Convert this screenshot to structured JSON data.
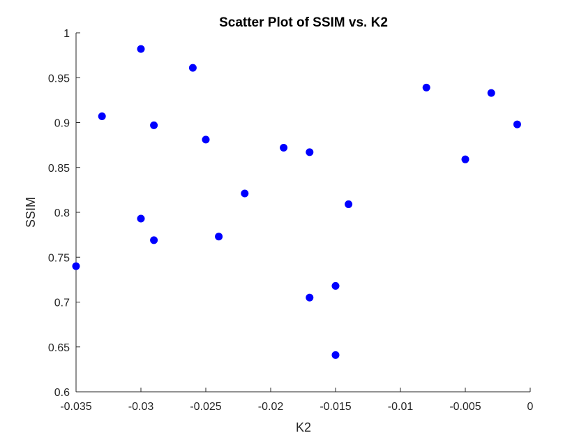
{
  "chart_data": {
    "type": "scatter",
    "title": "Scatter Plot of SSIM vs. K2",
    "xlabel": "K2",
    "ylabel": "SSIM",
    "xlim": [
      -0.035,
      0
    ],
    "ylim": [
      0.6,
      1
    ],
    "xticks": [
      -0.035,
      -0.03,
      -0.025,
      -0.02,
      -0.015,
      -0.01,
      -0.005,
      0
    ],
    "xtick_labels": [
      "-0.035",
      "-0.03",
      "-0.025",
      "-0.02",
      "-0.015",
      "-0.01",
      "-0.005",
      "0"
    ],
    "yticks": [
      0.6,
      0.65,
      0.7,
      0.75,
      0.8,
      0.85,
      0.9,
      0.95,
      1
    ],
    "ytick_labels": [
      "0.6",
      "0.65",
      "0.7",
      "0.75",
      "0.8",
      "0.85",
      "0.9",
      "0.95",
      "1"
    ],
    "grid": false,
    "marker_color": "#0000ff",
    "points": [
      {
        "x": -0.035,
        "y": 0.74
      },
      {
        "x": -0.033,
        "y": 0.907
      },
      {
        "x": -0.03,
        "y": 0.982
      },
      {
        "x": -0.03,
        "y": 0.793
      },
      {
        "x": -0.029,
        "y": 0.897
      },
      {
        "x": -0.029,
        "y": 0.769
      },
      {
        "x": -0.026,
        "y": 0.961
      },
      {
        "x": -0.025,
        "y": 0.881
      },
      {
        "x": -0.024,
        "y": 0.773
      },
      {
        "x": -0.022,
        "y": 0.821
      },
      {
        "x": -0.019,
        "y": 0.872
      },
      {
        "x": -0.017,
        "y": 0.867
      },
      {
        "x": -0.017,
        "y": 0.705
      },
      {
        "x": -0.015,
        "y": 0.718
      },
      {
        "x": -0.015,
        "y": 0.641
      },
      {
        "x": -0.014,
        "y": 0.809
      },
      {
        "x": -0.008,
        "y": 0.939
      },
      {
        "x": -0.005,
        "y": 0.859
      },
      {
        "x": -0.003,
        "y": 0.933
      },
      {
        "x": -0.001,
        "y": 0.898
      }
    ]
  }
}
